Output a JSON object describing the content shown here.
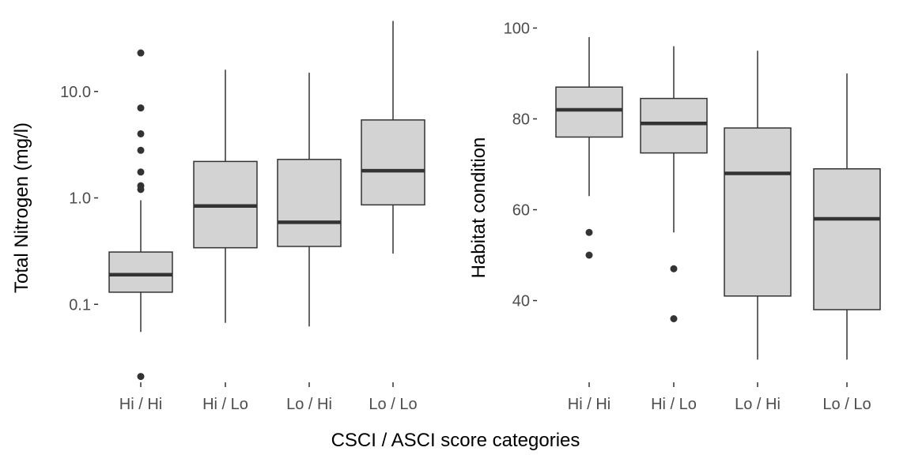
{
  "shared_xlabel": "CSCI / ASCI score categories",
  "colors": {
    "box_fill": "#d3d3d3",
    "box_line": "#333333",
    "tick_text": "#4d4d4d"
  },
  "chart_data": [
    {
      "type": "box",
      "ylabel": "Total Nitrogen (mg/l)",
      "yscale": "log10",
      "ylim": [
        0.0185,
        48
      ],
      "yticks": [
        0.1,
        1.0,
        10.0
      ],
      "ytick_labels": [
        "0.1",
        "1.0",
        "10.0"
      ],
      "categories": [
        "Hi / Hi",
        "Hi / Lo",
        "Lo / Hi",
        "Lo / Lo"
      ],
      "boxes": [
        {
          "category": "Hi / Hi",
          "lower_whisker": 0.055,
          "q1": 0.13,
          "median": 0.19,
          "q3": 0.31,
          "upper_whisker": 0.95,
          "outliers": [
            0.021,
            1.2,
            1.3,
            1.75,
            2.8,
            4.0,
            7.0,
            23.0
          ]
        },
        {
          "category": "Hi / Lo",
          "lower_whisker": 0.067,
          "q1": 0.34,
          "median": 0.84,
          "q3": 2.2,
          "upper_whisker": 16.0,
          "outliers": []
        },
        {
          "category": "Lo / Hi",
          "lower_whisker": 0.062,
          "q1": 0.35,
          "median": 0.59,
          "q3": 2.3,
          "upper_whisker": 15.0,
          "outliers": []
        },
        {
          "category": "Lo / Lo",
          "lower_whisker": 0.3,
          "q1": 0.86,
          "median": 1.8,
          "q3": 5.4,
          "upper_whisker": 46.0,
          "outliers": []
        }
      ]
    },
    {
      "type": "box",
      "ylabel": "Habitat condition",
      "ylim": [
        22,
        102
      ],
      "yticks": [
        40,
        60,
        80,
        100
      ],
      "ytick_labels": [
        "40",
        "60",
        "80",
        "100"
      ],
      "categories": [
        "Hi / Hi",
        "Hi / Lo",
        "Lo / Hi",
        "Lo / Lo"
      ],
      "boxes": [
        {
          "category": "Hi / Hi",
          "lower_whisker": 63,
          "q1": 76,
          "median": 82,
          "q3": 87,
          "upper_whisker": 98,
          "outliers": [
            50,
            55
          ]
        },
        {
          "category": "Hi / Lo",
          "lower_whisker": 55,
          "q1": 72.5,
          "median": 79,
          "q3": 84.5,
          "upper_whisker": 96,
          "outliers": [
            36,
            47
          ]
        },
        {
          "category": "Lo / Hi",
          "lower_whisker": 27,
          "q1": 41,
          "median": 68,
          "q3": 78,
          "upper_whisker": 95,
          "outliers": []
        },
        {
          "category": "Lo / Lo",
          "lower_whisker": 27,
          "q1": 38,
          "median": 58,
          "q3": 69,
          "upper_whisker": 90,
          "outliers": []
        }
      ]
    }
  ]
}
